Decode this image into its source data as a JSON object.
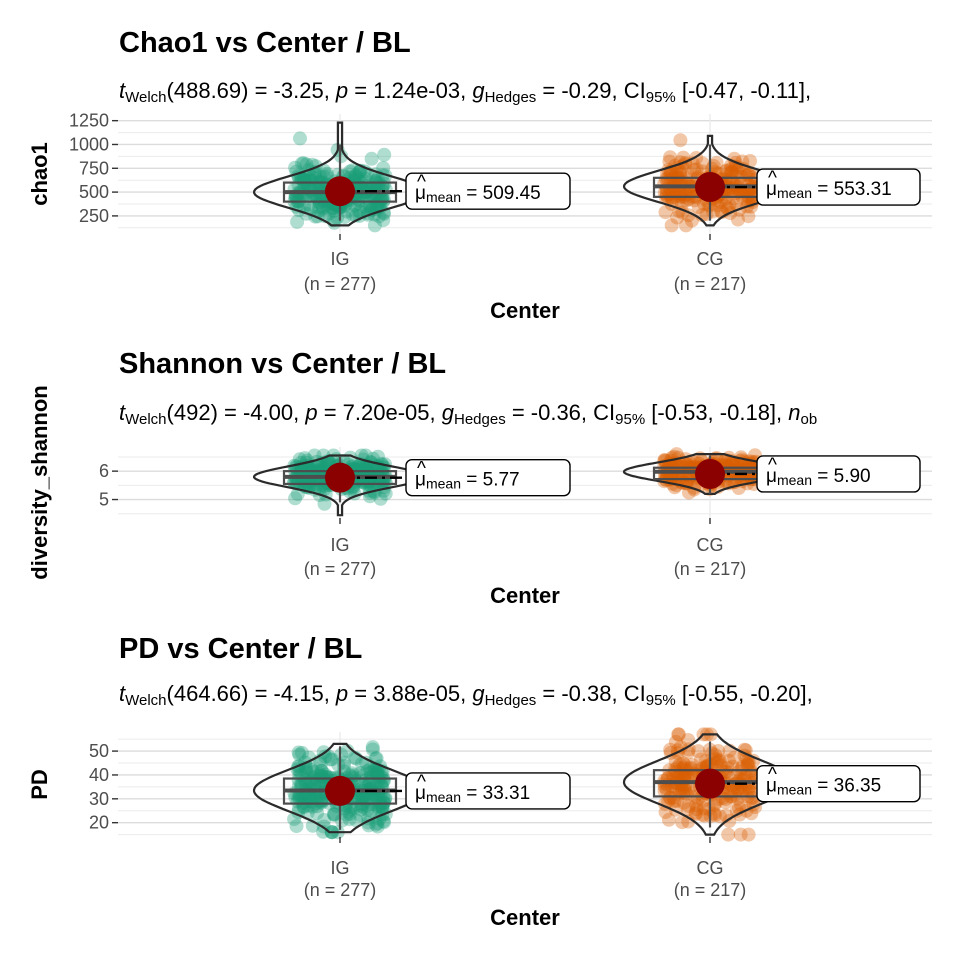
{
  "chart_data": [
    {
      "type": "violin-box-scatter",
      "title": "Chao1 vs Center / BL",
      "subtitle": {
        "t_sub": "Welch",
        "df": "488.69",
        "t_value": "-3.25",
        "p_value": "1.24e-03",
        "g_sub": "Hedges",
        "g_value": "-0.29",
        "ci_sub": "95%",
        "ci_value": "[-0.47, -0.11],"
      },
      "xlabel": "Center",
      "ylabel": "chao1",
      "ylim": [
        60,
        1320
      ],
      "yticks": [
        250,
        500,
        750,
        1000,
        1250
      ],
      "categories": [
        {
          "name": "IG",
          "n_label": "(n = 277)",
          "n": 277,
          "color": "#1b9e77",
          "mean": 509.45,
          "mean_label": "509.45",
          "box": {
            "q1": 400,
            "median": 500,
            "q3": 600,
            "wmin": 200,
            "wmax": 1000
          },
          "range": [
            150,
            1230
          ]
        },
        {
          "name": "CG",
          "n_label": "(n = 217)",
          "n": 217,
          "color": "#d95f02",
          "mean": 553.31,
          "mean_label": "553.31",
          "box": {
            "q1": 450,
            "median": 560,
            "q3": 650,
            "wmin": 200,
            "wmax": 1000
          },
          "range": [
            150,
            1090
          ]
        }
      ]
    },
    {
      "type": "violin-box-scatter",
      "title": "Shannon  vs Center / BL",
      "subtitle": {
        "t_sub": "Welch",
        "df": "492",
        "t_value": "-4.00",
        "p_value": "7.20e-05",
        "g_sub": "Hedges",
        "g_value": "-0.36",
        "ci_sub": "95%",
        "ci_value": "[-0.53, -0.18],",
        "extra": "n",
        "extra_sub": "ob"
      },
      "xlabel": "Center",
      "ylabel": "diversity_shannon",
      "ylim": [
        4.35,
        6.85
      ],
      "yticks": [
        5,
        6
      ],
      "categories": [
        {
          "name": "IG",
          "n_label": "(n = 277)",
          "n": 277,
          "color": "#1b9e77",
          "mean": 5.77,
          "mean_label": "5.77",
          "box": {
            "q1": 5.55,
            "median": 5.8,
            "q3": 6.0,
            "wmin": 4.9,
            "wmax": 6.5
          },
          "range": [
            4.45,
            6.55
          ]
        },
        {
          "name": "CG",
          "n_label": "(n = 217)",
          "n": 217,
          "color": "#d95f02",
          "mean": 5.9,
          "mean_label": "5.90",
          "box": {
            "q1": 5.72,
            "median": 5.98,
            "q3": 6.12,
            "wmin": 5.2,
            "wmax": 6.55
          },
          "range": [
            5.2,
            6.6
          ]
        }
      ]
    },
    {
      "type": "violin-box-scatter",
      "title": "PD  vs Center / BL",
      "subtitle": {
        "t_sub": "Welch",
        "df": "464.66",
        "t_value": "-4.15",
        "p_value": "3.88e-05",
        "g_sub": "Hedges",
        "g_value": "-0.38",
        "ci_sub": "95%",
        "ci_value": "[-0.55, -0.20],"
      },
      "xlabel": "Center",
      "ylabel": "PD",
      "ylim": [
        14,
        58
      ],
      "yticks": [
        20,
        30,
        40,
        50
      ],
      "categories": [
        {
          "name": "IG",
          "n_label": "(n = 277)",
          "n": 277,
          "color": "#1b9e77",
          "mean": 33.31,
          "mean_label": "33.31",
          "box": {
            "q1": 28,
            "median": 33.5,
            "q3": 38.5,
            "wmin": 17,
            "wmax": 52
          },
          "range": [
            16,
            53
          ]
        },
        {
          "name": "CG",
          "n_label": "(n = 217)",
          "n": 217,
          "color": "#d95f02",
          "mean": 36.35,
          "mean_label": "36.35",
          "box": {
            "q1": 31,
            "median": 37,
            "q3": 42,
            "wmin": 18,
            "wmax": 54
          },
          "range": [
            15,
            57
          ]
        }
      ]
    }
  ]
}
